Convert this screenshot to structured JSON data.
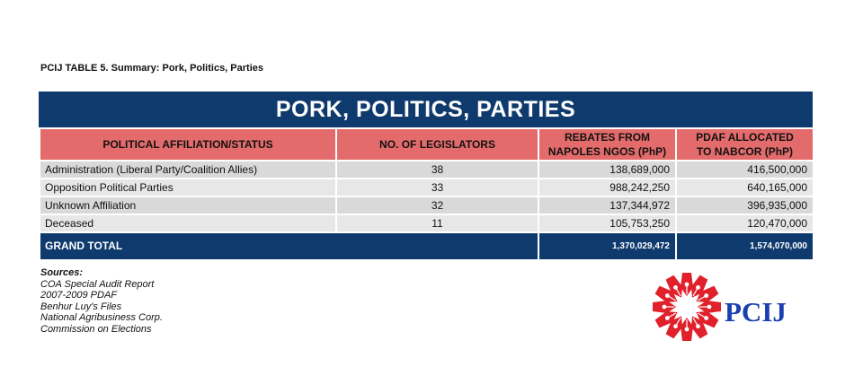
{
  "caption": "PCIJ TABLE 5. Summary: Pork, Politics, Parties",
  "table": {
    "title": "PORK, POLITICS, PARTIES",
    "headers": [
      [
        "POLITICAL AFFILIATION/STATUS"
      ],
      [
        "NO. OF LEGISLATORS"
      ],
      [
        "REBATES FROM",
        "NAPOLES NGOS (PhP)"
      ],
      [
        "PDAF ALLOCATED",
        "TO NABCOR (PhP)"
      ]
    ],
    "rows": [
      [
        "Administration (Liberal Party/Coalition Allies)",
        "38",
        "138,689,000",
        "416,500,000"
      ],
      [
        "Opposition Political Parties",
        "33",
        "988,242,250",
        "640,165,000"
      ],
      [
        "Unknown Affiliation",
        "32",
        "137,344,972",
        "396,935,000"
      ],
      [
        "Deceased",
        "11",
        "105,753,250",
        "120,470,000"
      ]
    ],
    "total": {
      "label": "GRAND TOTAL",
      "rebates": "1,370,029,472",
      "pdaf": "1,574,070,000"
    },
    "colors": {
      "header_bg": "#e36b6b",
      "banner_bg": "#0f3a6e",
      "row_bg": "#d9d9d9"
    }
  },
  "sources": {
    "heading": "Sources:",
    "items": [
      "COA Special Audit Report",
      "2007-2009 PDAF",
      "Benhur Luy's Files",
      "National Agribusiness Corp.",
      "Commission on Elections"
    ]
  },
  "logo": {
    "text": "PCIJ",
    "icon": "pcij-pen-star-logo",
    "colors": {
      "emblem": "#e0202a",
      "text": "#1a3fb0"
    }
  }
}
